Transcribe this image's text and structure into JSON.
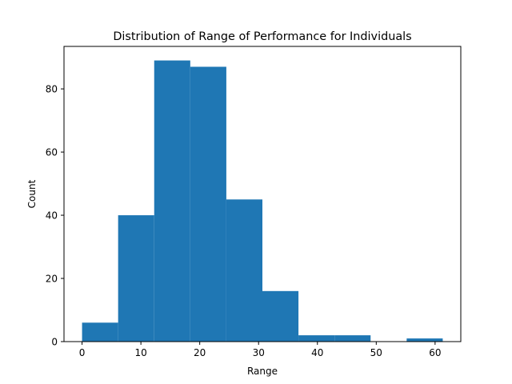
{
  "chart_data": {
    "type": "bar",
    "title": "Distribution of Range of Performance for Individuals",
    "xlabel": "Range",
    "ylabel": "Count",
    "bins": [
      {
        "start": 0.0,
        "end": 6.13,
        "count": 6
      },
      {
        "start": 6.13,
        "end": 12.26,
        "count": 40
      },
      {
        "start": 12.26,
        "end": 18.39,
        "count": 89
      },
      {
        "start": 18.39,
        "end": 24.52,
        "count": 87
      },
      {
        "start": 24.52,
        "end": 30.65,
        "count": 45
      },
      {
        "start": 30.65,
        "end": 36.78,
        "count": 16
      },
      {
        "start": 36.78,
        "end": 42.91,
        "count": 2
      },
      {
        "start": 42.91,
        "end": 49.04,
        "count": 2
      },
      {
        "start": 49.04,
        "end": 55.17,
        "count": 0
      },
      {
        "start": 55.17,
        "end": 61.3,
        "count": 1
      }
    ],
    "xlim": [
      -3.07,
      64.37
    ],
    "ylim": [
      0,
      93.45
    ],
    "xticks": [
      0,
      10,
      20,
      30,
      40,
      50,
      60
    ],
    "yticks": [
      0,
      20,
      40,
      60,
      80
    ],
    "bar_color": "#1f77b4",
    "grid": false
  }
}
